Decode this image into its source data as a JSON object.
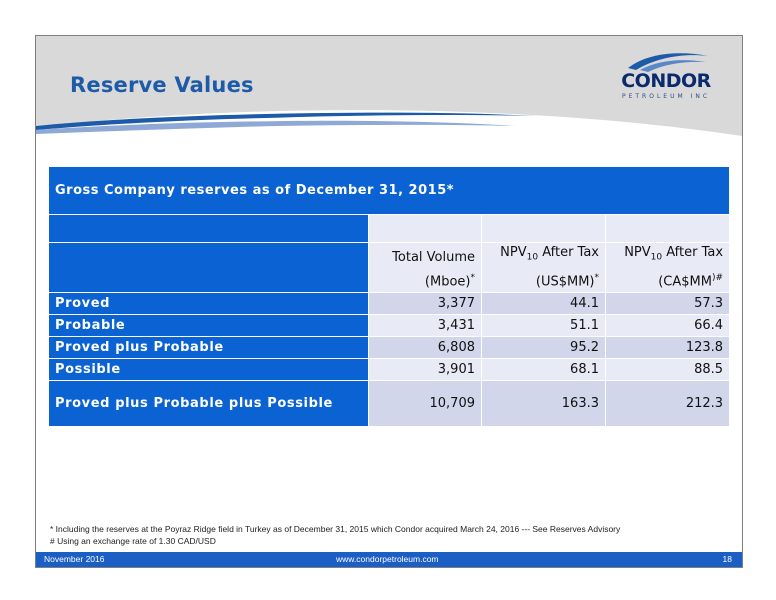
{
  "slide": {
    "title": "Reserve Values",
    "logo": {
      "name": "CONDOR",
      "sub": "PETROLEUM INC"
    },
    "colors": {
      "title_blue": "#1d5ba8",
      "table_blue": "#0a62d3",
      "cell_light": "#e8ebf6",
      "cell_mid": "#d1d6ea",
      "footer_blue": "#1b5ec4"
    }
  },
  "table": {
    "caption": "Gross Company reserves as of December 31, 2015*",
    "columns": [
      {
        "line1": "Total Volume",
        "line2": "(Mboe)",
        "mark": "*"
      },
      {
        "line1_pre": "NPV",
        "line1_sub": "10",
        "line1_post": " After Tax",
        "line2": "(US$MM)",
        "mark": "*"
      },
      {
        "line1_pre": "NPV",
        "line1_sub": "10",
        "line1_post": " After Tax",
        "line2": "(CA$MM",
        "mark": ")#"
      }
    ],
    "rows": [
      {
        "label": "Proved",
        "volume": "3,377",
        "npv_us": "44.1",
        "npv_ca": "57.3"
      },
      {
        "label": "Probable",
        "volume": "3,431",
        "npv_us": "51.1",
        "npv_ca": "66.4"
      },
      {
        "label": "Proved plus Probable",
        "volume": "6,808",
        "npv_us": "95.2",
        "npv_ca": "123.8"
      },
      {
        "label": "Possible",
        "volume": "3,901",
        "npv_us": "68.1",
        "npv_ca": "88.5"
      },
      {
        "label": "Proved plus Probable plus Possible",
        "volume": "10,709",
        "npv_us": "163.3",
        "npv_ca": "212.3"
      }
    ]
  },
  "footnotes": {
    "note1": "* Including the reserves at the Poyraz Ridge field in Turkey as of December 31, 2015 which Condor acquired March 24, 2016 --- See Reserves Advisory",
    "note2": "# Using an exchange rate of 1.30 CAD/USD"
  },
  "footer": {
    "date": "November 2016",
    "url": "www.condorpetroleum.com",
    "page": "18"
  }
}
